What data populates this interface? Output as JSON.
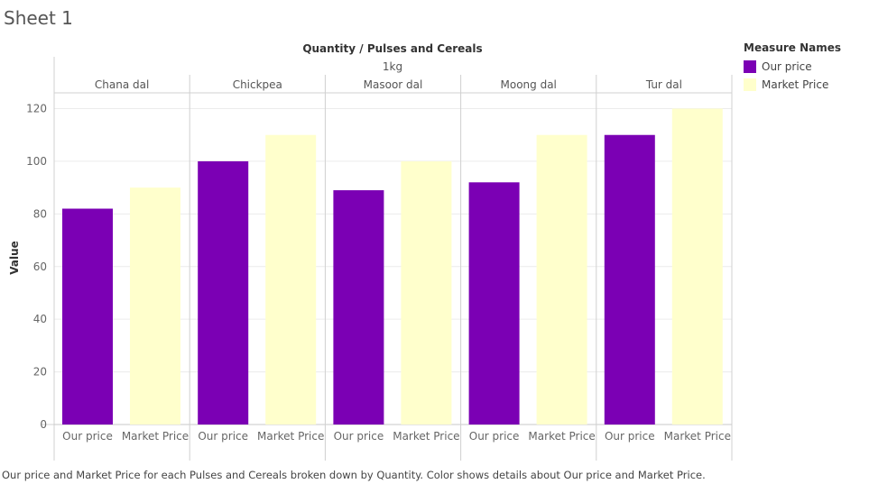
{
  "sheet_title": "Sheet 1",
  "caption": "Our price and Market Price for each Pulses and Cereals broken down by Quantity.  Color shows details about Our price and Market Price.",
  "legend": {
    "title": "Measure Names",
    "items": [
      {
        "label": "Our price",
        "color": "#7b00b4"
      },
      {
        "label": "Market Price",
        "color": "#ffffcc"
      }
    ]
  },
  "chart_data": {
    "type": "bar",
    "column_header_title": "Quantity  /  Pulses and Cereals",
    "quantity": "1kg",
    "ylabel": "Value",
    "ylim": [
      0,
      126
    ],
    "yticks": [
      0,
      20,
      40,
      60,
      80,
      100,
      120
    ],
    "grid": true,
    "legend_position": "right",
    "categories": [
      "Chana dal",
      "Chickpea",
      "Masoor dal",
      "Moong dal",
      "Tur dal"
    ],
    "measures": [
      "Our price",
      "Market Price"
    ],
    "series": [
      {
        "name": "Our price",
        "color": "#7b00b4",
        "values": [
          82,
          100,
          89,
          92,
          110
        ]
      },
      {
        "name": "Market Price",
        "color": "#ffffcc",
        "values": [
          90,
          110,
          100,
          110,
          120
        ]
      }
    ]
  }
}
